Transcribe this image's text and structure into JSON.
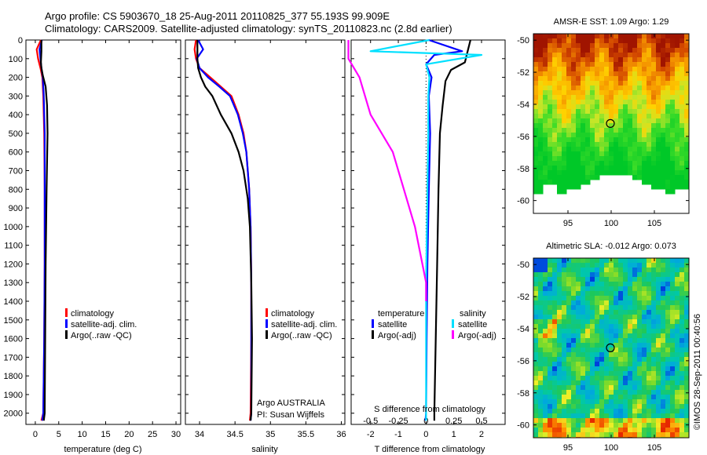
{
  "title_line1": "Argo profile: CS 5903670_18 25-Aug-2011 20110825_377 55.193S 99.909E",
  "title_line2": "Climatology: CARS2009. Satellite-adjusted climatology: synTS_20110823.nc (2.8d earlier)",
  "credit": "Argo AUSTRALIA",
  "pi": "PI: Susan Wijffels",
  "stamp": "©IMOS 28-Sep-2011 00:40:56",
  "colors": {
    "clim": "#ff0000",
    "sat": "#0000ff",
    "argo": "#000000",
    "sal_sat": "#00e0ff",
    "sal_argo": "#ff00ff"
  },
  "depth_ticks": [
    0,
    100,
    200,
    300,
    400,
    500,
    600,
    700,
    800,
    900,
    1000,
    1100,
    1200,
    1300,
    1400,
    1500,
    1600,
    1700,
    1800,
    1900,
    2000
  ],
  "chart_data": [
    {
      "type": "line",
      "id": "temperature",
      "xlabel": "temperature (deg C)",
      "xlim": [
        -2,
        31
      ],
      "ylim": [
        2060,
        0
      ],
      "xticks": [
        0,
        5,
        10,
        15,
        20,
        25,
        30
      ],
      "legend": [
        "climatology",
        "satellite-adj. clim.",
        "Argo(..raw -QC)"
      ],
      "series": [
        {
          "name": "climatology",
          "color": "#ff0000",
          "x": [
            1.2,
            0.3,
            0.6,
            1.1,
            1.5,
            1.7,
            1.9,
            2.0,
            2.0,
            1.9,
            1.7,
            1.3
          ],
          "y": [
            0,
            50,
            100,
            150,
            200,
            300,
            500,
            800,
            1200,
            1600,
            2000,
            2040
          ]
        },
        {
          "name": "satellite-adj. clim.",
          "color": "#0000ff",
          "x": [
            1.4,
            0.9,
            1.1,
            1.3,
            1.6,
            1.8,
            2.0,
            2.0,
            2.0,
            1.9,
            1.7,
            1.5
          ],
          "y": [
            0,
            50,
            100,
            150,
            200,
            300,
            500,
            800,
            1200,
            1600,
            2000,
            2040
          ]
        },
        {
          "name": "Argo(..raw -QC)",
          "color": "#000000",
          "x": [
            1.3,
            1.3,
            1.2,
            1.3,
            1.6,
            2.2,
            2.5,
            2.6,
            2.4,
            2.2,
            2.1,
            2.0,
            1.8
          ],
          "y": [
            0,
            60,
            120,
            150,
            190,
            250,
            350,
            500,
            800,
            1200,
            1600,
            2000,
            2040
          ]
        }
      ]
    },
    {
      "type": "line",
      "id": "salinity",
      "xlabel": "salinity",
      "xlim": [
        33.8,
        36.05
      ],
      "ylim": [
        2060,
        0
      ],
      "xticks": [
        34,
        34.5,
        35,
        35.5,
        36
      ],
      "legend": [
        "climatology",
        "satellite-adj. clim.",
        "Argo(..raw -QC)"
      ],
      "series": [
        {
          "name": "climatology",
          "color": "#ff0000",
          "x": [
            33.95,
            33.93,
            33.95,
            34.0,
            34.15,
            34.3,
            34.45,
            34.55,
            34.62,
            34.66,
            34.7,
            34.72,
            34.73,
            34.73,
            34.72,
            34.71
          ],
          "y": [
            0,
            50,
            100,
            150,
            200,
            250,
            300,
            400,
            500,
            600,
            800,
            1000,
            1300,
            1600,
            2000,
            2040
          ]
        },
        {
          "name": "satellite-adj. clim.",
          "color": "#0000ff",
          "x": [
            33.98,
            34.05,
            33.96,
            34.0,
            34.12,
            34.28,
            34.43,
            34.54,
            34.61,
            34.66,
            34.7,
            34.72,
            34.73,
            34.73,
            34.73,
            34.72
          ],
          "y": [
            0,
            50,
            100,
            150,
            200,
            250,
            300,
            400,
            500,
            600,
            800,
            1000,
            1300,
            1600,
            2000,
            2040
          ]
        },
        {
          "name": "Argo(..raw -QC)",
          "color": "#000000",
          "x": [
            33.97,
            33.97,
            33.98,
            34.02,
            34.08,
            34.18,
            34.3,
            34.45,
            34.55,
            34.62,
            34.68,
            34.71,
            34.73,
            34.74,
            34.73,
            34.72
          ],
          "y": [
            0,
            100,
            150,
            200,
            250,
            300,
            400,
            500,
            600,
            700,
            850,
            1000,
            1300,
            1600,
            2000,
            2040
          ]
        }
      ]
    },
    {
      "type": "line",
      "id": "difference",
      "xlabel": "T difference from climatology",
      "xlabel2": "S difference from climatology",
      "xlim": [
        -2.7,
        2.85
      ],
      "ylim": [
        2060,
        0
      ],
      "xticks": [
        -2,
        -1,
        0,
        1,
        2
      ],
      "xticks2": [
        -0.5,
        -0.25,
        0,
        0.25,
        0.5
      ],
      "legend_titles": [
        "temperature",
        "salinity"
      ],
      "legend": [
        "satellite",
        "Argo(-adj)",
        "satellite",
        "Argo(-adj)"
      ],
      "series": [
        {
          "name": "temperature satellite",
          "color": "#0000ff",
          "x": [
            0.1,
            1.3,
            0.3,
            0.0,
            0.2,
            0.1,
            0.15,
            0.1,
            0.05,
            0.02,
            0.0,
            -0.02
          ],
          "y": [
            0,
            60,
            80,
            130,
            200,
            300,
            500,
            800,
            1200,
            1600,
            2000,
            2040
          ]
        },
        {
          "name": "temperature Argo(-adj)",
          "color": "#000000",
          "x": [
            1.6,
            1.5,
            1.4,
            0.9,
            0.7,
            0.6,
            0.5,
            0.45,
            0.4,
            0.35,
            0.3,
            0.3
          ],
          "y": [
            0,
            60,
            120,
            160,
            220,
            350,
            500,
            800,
            1200,
            1600,
            2000,
            2040
          ]
        },
        {
          "name": "salinity satellite",
          "color": "#00e0ff",
          "x": [
            0.03,
            -0.5,
            0.5,
            0.0,
            0.03,
            0.02,
            0.02,
            0.01,
            0.0,
            0.0,
            0.0
          ],
          "y": [
            0,
            60,
            80,
            130,
            200,
            300,
            500,
            900,
            1300,
            1700,
            2040
          ]
        },
        {
          "name": "salinity Argo(-adj)",
          "color": "#ff00ff",
          "x": [
            -0.7,
            -0.7,
            -0.6,
            -0.5,
            -0.3,
            -0.2,
            -0.1,
            0.0,
            0.0
          ],
          "y": [
            0,
            100,
            200,
            400,
            600,
            800,
            1000,
            1300,
            1400
          ]
        }
      ]
    },
    {
      "type": "heatmap",
      "id": "sst_map",
      "title": "AMSR-E SST: 1.09 Argo: 1.29",
      "xlim": [
        91,
        109
      ],
      "ylim": [
        -60.8,
        -49.6
      ],
      "xticks": [
        95,
        100,
        105
      ],
      "yticks": [
        -50,
        -52,
        -54,
        -56,
        -58,
        -60
      ],
      "marker": {
        "lon": 99.909,
        "lat": -55.193
      }
    },
    {
      "type": "heatmap",
      "id": "sla_map",
      "title": "Altimetric SLA: -0.012 Argo: 0.073",
      "xlim": [
        91,
        109
      ],
      "ylim": [
        -60.8,
        -49.6
      ],
      "xticks": [
        95,
        100,
        105
      ],
      "yticks": [
        -50,
        -52,
        -54,
        -56,
        -58,
        -60
      ],
      "marker": {
        "lon": 99.909,
        "lat": -55.193
      }
    }
  ]
}
